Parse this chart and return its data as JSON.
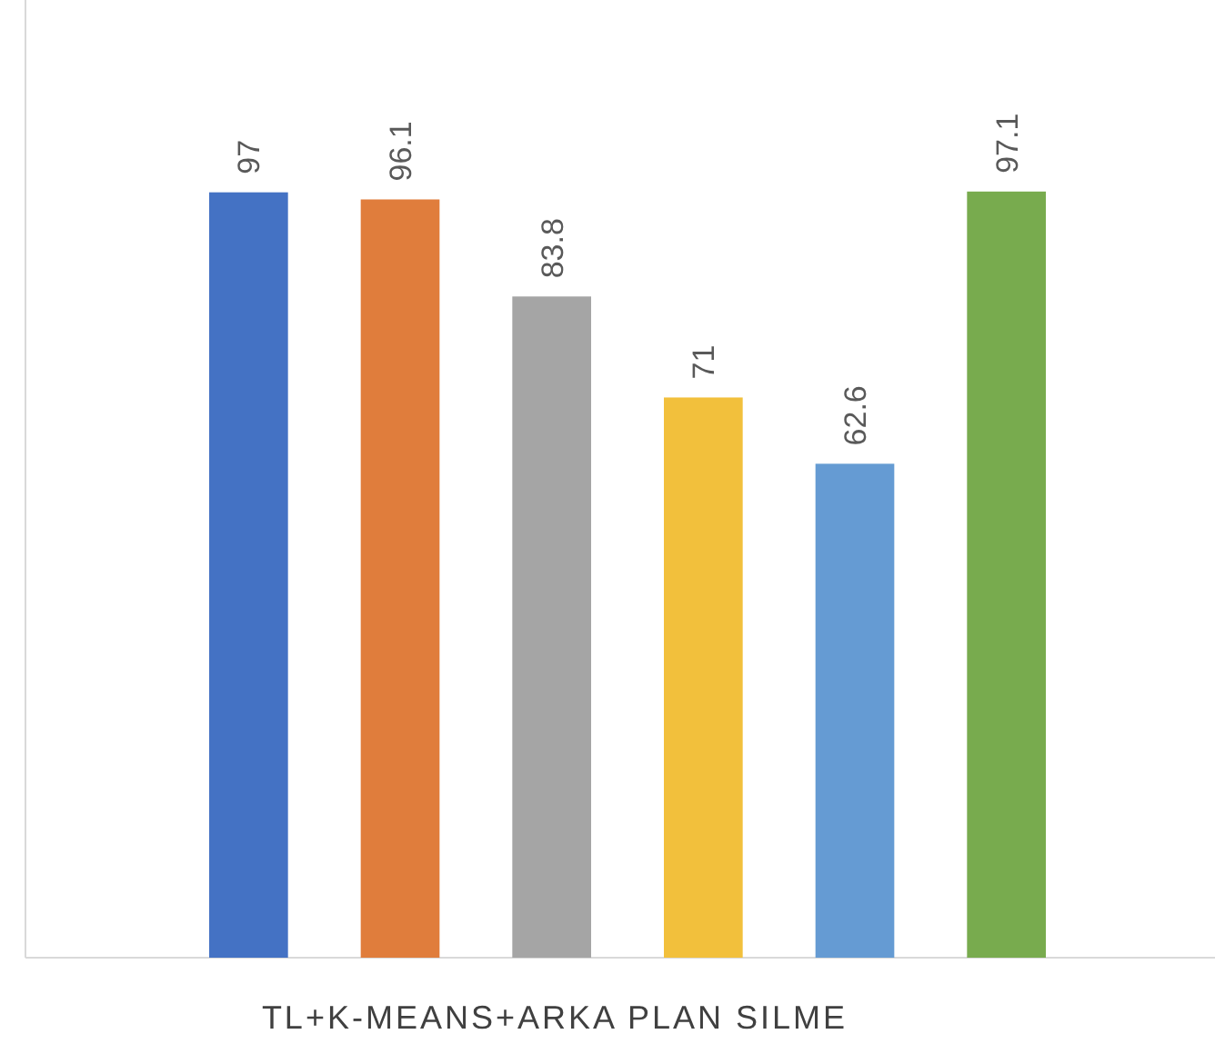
{
  "chart_data": {
    "type": "bar",
    "xlabel": "TL+K-MEANS+ARKA PLAN SILME",
    "categories": [
      null,
      null,
      null,
      null,
      null,
      null
    ],
    "values": [
      97,
      96.1,
      83.8,
      71,
      62.6,
      97.1
    ],
    "colors": [
      "#4472c4",
      "#e07d3c",
      "#a5a5a5",
      "#f2c03c",
      "#659bd3",
      "#78ab4e"
    ],
    "data_labels": true
  }
}
